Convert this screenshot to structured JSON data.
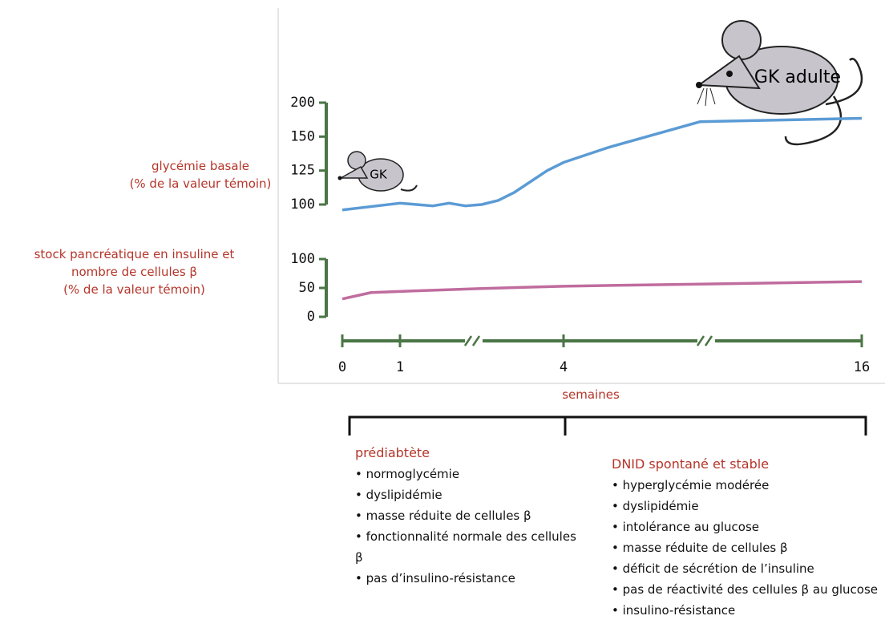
{
  "chart_data": {
    "type": "line",
    "ylabel": "glycémie basale\n(% de la valeur témoin)",
    "y2label": "stock pancréatique en insuline et\nnombre de cellules β\n(% de la valeur témoin)",
    "xlabel": "semaines",
    "xlim": [
      0,
      16
    ],
    "xticks": [
      0,
      1,
      4,
      16
    ],
    "ylim": [
      100,
      200
    ],
    "yticks": [
      100,
      125,
      150,
      200
    ],
    "y2lim": [
      0,
      100
    ],
    "y2ticks": [
      0,
      50,
      100
    ],
    "axis_color": "#4a7545",
    "annotations": [
      "GK",
      "GK adulte"
    ],
    "series": [
      {
        "color": "#5b9bd5",
        "x": [
          0,
          0.6,
          1,
          1.3,
          1.6,
          1.9,
          2.2,
          2.5,
          2.8,
          3.1,
          3.7,
          4,
          5.8,
          9.5,
          16
        ],
        "values": [
          96,
          99,
          101,
          100,
          99,
          101,
          99,
          100,
          103,
          109,
          125,
          131,
          142,
          172,
          177
        ]
      },
      {
        "color": "#c06c9e",
        "axis": "y2",
        "x": [
          0,
          0.5,
          1,
          2.5,
          4,
          10,
          16
        ],
        "values": [
          31,
          42,
          44,
          49,
          53,
          57,
          61
        ]
      }
    ]
  },
  "phases": [
    {
      "title": "prédiabtète",
      "items": [
        "normoglycémie",
        "dyslipidémie",
        "masse réduite de cellules β",
        "fonctionnalité normale des cellules β",
        "pas d’insulino-résistance"
      ]
    },
    {
      "title": "DNID spontané et stable",
      "items": [
        "hyperglycémie modérée",
        "dyslipidémie",
        "intolérance au glucose",
        "masse réduite de cellules β",
        "déficit de sécrétion de l’insuline",
        "pas de réactivité des cellules β au glucose",
        "insulino-résistance"
      ]
    }
  ]
}
